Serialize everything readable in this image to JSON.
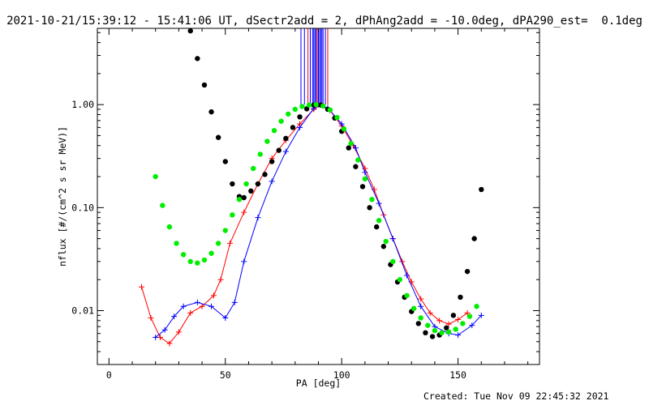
{
  "title": "2021-10-21/15:39:12 - 15:41:06 UT, dSectr2add = 2, dPhAng2add = -10.0deg, dPA290_est=  0.1deg",
  "footer": "Created: Tue Nov 09 22:45:32 2021",
  "colors": {
    "red": "#ff0000",
    "blue": "#0000ff",
    "black": "#000000",
    "green": "#00ee00"
  },
  "chart_data": {
    "type": "scatter",
    "title": "2021-10-21/15:39:12 - 15:41:06 UT, dSectr2add = 2, dPhAng2add = -10.0deg, dPA290_est=  0.1deg",
    "xlabel": "PA [deg]",
    "ylabel": "nflux [#/(cm^2 s sr MeV)]",
    "xlim": [
      -5,
      185
    ],
    "ylim": [
      0.003,
      5.5
    ],
    "yscale": "log",
    "x_ticks": [
      0,
      50,
      100,
      150
    ],
    "x_tick_labels": [
      "0",
      "50",
      "100",
      "150"
    ],
    "y_ticks": [
      0.01,
      0.1,
      1.0
    ],
    "y_tick_labels": [
      "0.01",
      "0.10",
      "1.00"
    ],
    "grid": false,
    "vertical_lines": {
      "blue_x": [
        82.5,
        84,
        86.5,
        87.5,
        88,
        88.5,
        89,
        89.5,
        90,
        90.5,
        91,
        91.5,
        92,
        93
      ],
      "red_x": [
        85.5,
        89.5,
        94
      ]
    },
    "series": [
      {
        "color": "black",
        "marker": "dots",
        "x": [
          35,
          38,
          41,
          44,
          47,
          50,
          53,
          56,
          58,
          61,
          64,
          67,
          70,
          73,
          76,
          79,
          82,
          85,
          88,
          91,
          94,
          97,
          100,
          103,
          106,
          109,
          112,
          115,
          118,
          121,
          124,
          127,
          130,
          133,
          136,
          139,
          142,
          145,
          148,
          151,
          154,
          157,
          160
        ],
        "y": [
          5.2,
          2.8,
          1.55,
          0.85,
          0.48,
          0.28,
          0.17,
          0.128,
          0.125,
          0.145,
          0.17,
          0.21,
          0.28,
          0.36,
          0.47,
          0.6,
          0.76,
          0.91,
          0.99,
          0.99,
          0.9,
          0.74,
          0.55,
          0.38,
          0.25,
          0.16,
          0.1,
          0.065,
          0.042,
          0.028,
          0.019,
          0.0135,
          0.0098,
          0.0075,
          0.0061,
          0.0056,
          0.0058,
          0.0068,
          0.009,
          0.0135,
          0.024,
          0.05,
          0.15
        ]
      },
      {
        "color": "green",
        "marker": "dots",
        "x": [
          20,
          23,
          26,
          29,
          32,
          35,
          38,
          41,
          44,
          47,
          50,
          53,
          56,
          59,
          62,
          65,
          68,
          71,
          74,
          77,
          80,
          83,
          86,
          89,
          92,
          95,
          98,
          101,
          104,
          107,
          110,
          113,
          116,
          119,
          122,
          125,
          128,
          131,
          134,
          137,
          140,
          143,
          146,
          149,
          152,
          155,
          158
        ],
        "y": [
          0.2,
          0.105,
          0.065,
          0.045,
          0.035,
          0.03,
          0.029,
          0.031,
          0.036,
          0.045,
          0.06,
          0.085,
          0.12,
          0.17,
          0.24,
          0.33,
          0.44,
          0.56,
          0.69,
          0.81,
          0.9,
          0.96,
          0.99,
          1.0,
          0.97,
          0.89,
          0.75,
          0.58,
          0.42,
          0.29,
          0.19,
          0.12,
          0.075,
          0.047,
          0.03,
          0.02,
          0.014,
          0.0105,
          0.0085,
          0.0072,
          0.0064,
          0.0061,
          0.0062,
          0.0066,
          0.0075,
          0.0088,
          0.011
        ]
      },
      {
        "color": "red",
        "marker": "plus",
        "connected": true,
        "x": [
          14,
          18,
          22,
          26,
          30,
          35,
          40,
          45,
          48,
          52,
          58,
          64,
          70,
          76,
          82,
          88,
          91,
          95,
          100,
          105,
          110,
          114,
          118,
          122,
          126,
          130,
          134,
          138,
          142,
          146,
          150,
          154
        ],
        "y": [
          0.017,
          0.0085,
          0.0055,
          0.0048,
          0.0062,
          0.0095,
          0.011,
          0.014,
          0.02,
          0.045,
          0.09,
          0.17,
          0.3,
          0.45,
          0.65,
          0.9,
          1.0,
          0.88,
          0.62,
          0.4,
          0.24,
          0.15,
          0.085,
          0.05,
          0.03,
          0.019,
          0.013,
          0.0095,
          0.008,
          0.0074,
          0.0082,
          0.0095
        ]
      },
      {
        "color": "blue",
        "marker": "plus",
        "connected": true,
        "x": [
          20,
          24,
          28,
          32,
          38,
          44,
          50,
          54,
          58,
          64,
          70,
          76,
          82,
          88,
          90,
          94,
          100,
          106,
          110,
          116,
          122,
          128,
          134,
          140,
          146,
          150,
          156,
          160
        ],
        "y": [
          0.0055,
          0.0065,
          0.0088,
          0.011,
          0.012,
          0.011,
          0.0085,
          0.012,
          0.03,
          0.08,
          0.18,
          0.35,
          0.6,
          0.92,
          1.0,
          0.93,
          0.65,
          0.38,
          0.22,
          0.11,
          0.05,
          0.022,
          0.011,
          0.007,
          0.006,
          0.0058,
          0.0072,
          0.009
        ]
      }
    ]
  }
}
